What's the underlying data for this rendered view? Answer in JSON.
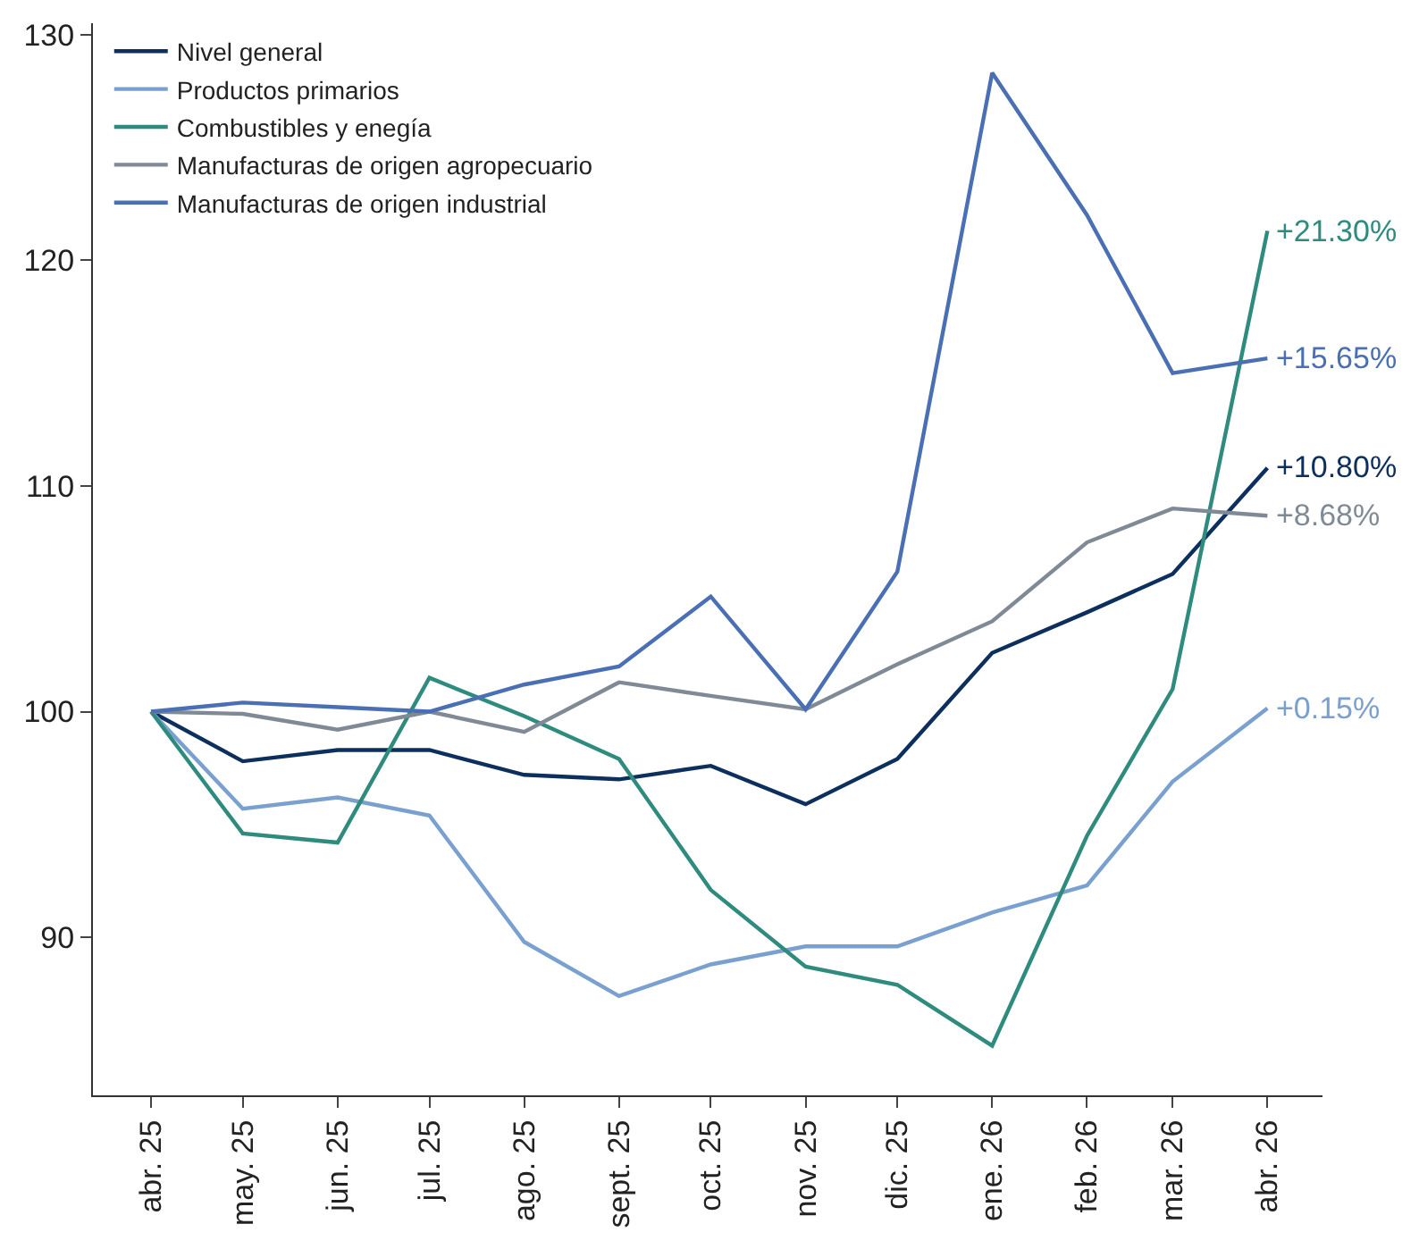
{
  "chart_data": {
    "type": "line",
    "x": [
      "2025-04",
      "2025-05",
      "2025-06",
      "2025-07",
      "2025-08",
      "2025-09",
      "2025-10",
      "2025-11",
      "2025-12",
      "2026-01",
      "2026-02",
      "2026-03",
      "2026-04"
    ],
    "series": [
      {
        "name": "Nivel general",
        "color": "#0d2f5e",
        "values": [
          100,
          97.8,
          98.3,
          98.3,
          97.2,
          97.0,
          97.6,
          95.9,
          97.9,
          102.6,
          104.4,
          106.1,
          110.8
        ]
      },
      {
        "name": "Productos primarios",
        "color": "#7aa0cf",
        "values": [
          100,
          95.7,
          96.2,
          95.4,
          89.8,
          87.4,
          88.8,
          89.6,
          89.6,
          91.1,
          92.3,
          96.9,
          100.15
        ]
      },
      {
        "name": "Combustibles y enegía",
        "color": "#2e8b7e",
        "values": [
          100,
          94.6,
          94.2,
          101.5,
          99.8,
          97.9,
          92.1,
          88.7,
          87.9,
          85.2,
          94.5,
          101.0,
          121.3
        ]
      },
      {
        "name": "Manufacturas de origen agropecuario",
        "color": "#7f8a96",
        "values": [
          100,
          99.9,
          99.2,
          100.0,
          99.1,
          101.3,
          100.7,
          100.1,
          102.1,
          104.0,
          107.5,
          109.0,
          108.68
        ]
      },
      {
        "name": "Manufacturas de origen industrial",
        "color": "#4a6fb5",
        "values": [
          100,
          100.4,
          100.2,
          100.0,
          101.2,
          102.0,
          105.1,
          100.1,
          106.2,
          128.3,
          122.0,
          115.0,
          115.65
        ]
      }
    ],
    "annotations": [
      {
        "text": "+10.80%",
        "x": "2026-04",
        "y": 110.8
      },
      {
        "text": "+0.15%",
        "x": "2026-04",
        "y": 100.15
      },
      {
        "text": "+21.30%",
        "x": "2026-04",
        "y": 121.3
      },
      {
        "text": "+8.68%",
        "x": "2026-04",
        "y": 108.68
      },
      {
        "text": "+15.65%",
        "x": "2026-04",
        "y": 115.65
      }
    ],
    "xlim": [
      "2025-03-13",
      "2026-04-19"
    ],
    "xticks": [
      {
        "value": "2025-04",
        "label": "abr. 25"
      },
      {
        "value": "2025-05",
        "label": "may. 25"
      },
      {
        "value": "2025-06",
        "label": "jun. 25"
      },
      {
        "value": "2025-07",
        "label": "jul. 25"
      },
      {
        "value": "2025-08",
        "label": "ago. 25"
      },
      {
        "value": "2025-09",
        "label": "sept. 25"
      },
      {
        "value": "2025-10",
        "label": "oct. 25"
      },
      {
        "value": "2025-11",
        "label": "nov. 25"
      },
      {
        "value": "2025-12",
        "label": "dic. 25"
      },
      {
        "value": "2026-01",
        "label": "ene. 26"
      },
      {
        "value": "2026-02",
        "label": "feb. 26"
      },
      {
        "value": "2026-03",
        "label": "mar. 26"
      },
      {
        "value": "2026-04",
        "label": "abr. 26"
      }
    ],
    "ylim": [
      83.0,
      130.5
    ],
    "yticks": [
      90,
      100,
      110,
      120,
      130
    ],
    "legend": "top left",
    "marker": "none",
    "line_style": "solid"
  }
}
